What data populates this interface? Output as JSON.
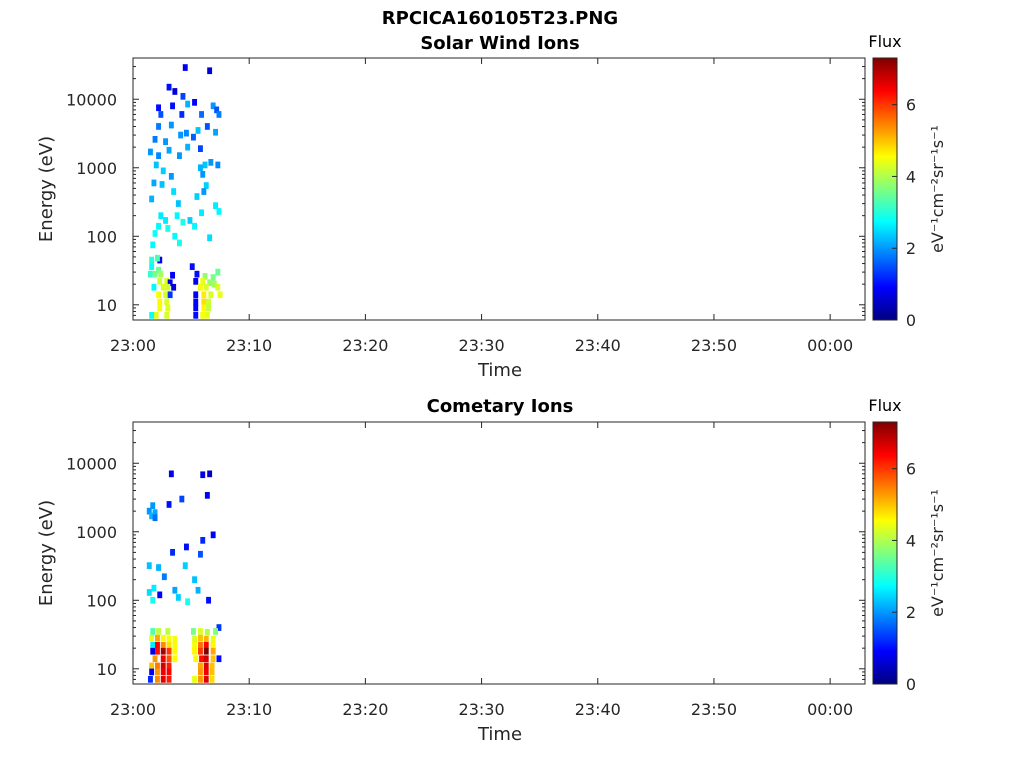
{
  "figure_title": "RPCICA160105T23.PNG",
  "colormap": [
    "#00007f",
    "#0000ff",
    "#007fff",
    "#00ffff",
    "#7fff7f",
    "#ffff00",
    "#ff7f00",
    "#ff0000",
    "#7f0000"
  ],
  "chart_data": [
    {
      "type": "heatmap",
      "title": "Solar Wind Ions",
      "xlabel": "Time",
      "ylabel": "Energy (eV)",
      "x_ticks": [
        "23:00",
        "23:10",
        "23:20",
        "23:30",
        "23:40",
        "23:50",
        "00:00"
      ],
      "x_range_min": [
        0,
        63
      ],
      "y_scale": "log",
      "y_range": [
        6,
        40000
      ],
      "y_ticks": [
        "10",
        "100",
        "1000",
        "10000"
      ],
      "colorbar": {
        "title": "Flux",
        "label": "eV⁻¹cm⁻²sr⁻¹s⁻¹",
        "range": [
          0,
          7.3
        ],
        "ticks": [
          "0",
          "2",
          "4",
          "6"
        ]
      },
      "cells": [
        [
          2.2,
          7500,
          1.0
        ],
        [
          3.1,
          15000,
          1.0
        ],
        [
          4.5,
          29000,
          0.8
        ],
        [
          6.6,
          26000,
          0.6
        ],
        [
          3.6,
          13000,
          0.6
        ],
        [
          4.3,
          11000,
          1.4
        ],
        [
          2.4,
          6000,
          1.5
        ],
        [
          3.4,
          8000,
          1.0
        ],
        [
          4.7,
          8500,
          2.2
        ],
        [
          5.3,
          9000,
          0.9
        ],
        [
          6.9,
          8000,
          2.0
        ],
        [
          7.2,
          7000,
          1.5
        ],
        [
          7.4,
          6000,
          1.8
        ],
        [
          4.2,
          6000,
          1.2
        ],
        [
          5.9,
          6000,
          1.7
        ],
        [
          2.2,
          4000,
          1.8
        ],
        [
          3.3,
          4200,
          2.0
        ],
        [
          4.6,
          3200,
          1.9
        ],
        [
          5.6,
          3500,
          2.3
        ],
        [
          6.4,
          4000,
          1.5
        ],
        [
          7.1,
          3300,
          2.1
        ],
        [
          4.1,
          3000,
          2.0
        ],
        [
          5.2,
          2800,
          1.6
        ],
        [
          1.9,
          2600,
          1.8
        ],
        [
          2.8,
          2400,
          2.0
        ],
        [
          4.7,
          2000,
          2.2
        ],
        [
          5.8,
          1900,
          1.4
        ],
        [
          3.1,
          1800,
          2.1
        ],
        [
          1.5,
          1700,
          2.0
        ],
        [
          2.2,
          1500,
          1.9
        ],
        [
          4.0,
          1500,
          2.0
        ],
        [
          6.2,
          1100,
          2.3
        ],
        [
          6.7,
          1200,
          2.0
        ],
        [
          7.3,
          1100,
          1.9
        ],
        [
          5.8,
          1000,
          2.2
        ],
        [
          2.0,
          1100,
          2.3
        ],
        [
          2.6,
          900,
          2.4
        ],
        [
          6.0,
          800,
          2.0
        ],
        [
          3.3,
          750,
          2.0
        ],
        [
          1.8,
          600,
          2.1
        ],
        [
          2.5,
          570,
          2.3
        ],
        [
          6.3,
          550,
          2.4
        ],
        [
          3.5,
          450,
          2.5
        ],
        [
          6.1,
          450,
          2.0
        ],
        [
          5.5,
          380,
          2.4
        ],
        [
          1.6,
          350,
          2.2
        ],
        [
          3.9,
          300,
          2.3
        ],
        [
          7.1,
          280,
          2.6
        ],
        [
          7.4,
          230,
          2.7
        ],
        [
          5.9,
          220,
          2.6
        ],
        [
          2.4,
          200,
          2.6
        ],
        [
          3.8,
          200,
          2.7
        ],
        [
          2.8,
          170,
          2.6
        ],
        [
          4.3,
          160,
          2.9
        ],
        [
          4.9,
          170,
          2.4
        ],
        [
          2.2,
          140,
          2.7
        ],
        [
          3.0,
          130,
          2.9
        ],
        [
          5.3,
          140,
          2.7
        ],
        [
          1.9,
          110,
          2.8
        ],
        [
          3.6,
          100,
          2.7
        ],
        [
          6.6,
          95,
          2.5
        ],
        [
          1.7,
          75,
          2.7
        ],
        [
          4.0,
          80,
          2.9
        ],
        [
          2.3,
          45,
          0.8
        ],
        [
          1.6,
          45,
          3.0
        ],
        [
          2.1,
          48,
          3.3
        ],
        [
          1.6,
          36,
          2.8
        ],
        [
          2.2,
          32,
          3.5
        ],
        [
          5.1,
          36,
          1.0
        ],
        [
          1.5,
          28,
          3.1
        ],
        [
          1.9,
          28,
          3.6
        ],
        [
          2.4,
          28,
          3.9
        ],
        [
          3.4,
          27,
          0.9
        ],
        [
          5.5,
          28,
          1.0
        ],
        [
          6.2,
          26,
          3.8
        ],
        [
          6.9,
          25,
          3.6
        ],
        [
          7.3,
          30,
          3.5
        ],
        [
          2.3,
          22,
          4.2
        ],
        [
          2.9,
          22,
          4.3
        ],
        [
          3.2,
          21,
          0.8
        ],
        [
          5.4,
          22,
          0.8
        ],
        [
          6.0,
          22,
          4.4
        ],
        [
          6.6,
          21,
          3.8
        ],
        [
          7.0,
          20,
          3.9
        ],
        [
          1.8,
          18,
          2.7
        ],
        [
          2.6,
          18,
          4.3
        ],
        [
          3.0,
          18,
          4.2
        ],
        [
          3.5,
          18,
          0.7
        ],
        [
          5.8,
          18,
          4.5
        ],
        [
          6.3,
          18,
          4.3
        ],
        [
          7.3,
          18,
          4.3
        ],
        [
          2.2,
          14,
          4.5
        ],
        [
          2.8,
          14,
          4.3
        ],
        [
          5.4,
          14,
          0.9
        ],
        [
          6.1,
          14,
          4.7
        ],
        [
          6.7,
          14,
          4.3
        ],
        [
          7.5,
          14,
          4.4
        ],
        [
          3.2,
          14,
          1.3
        ],
        [
          2.3,
          11,
          4.6
        ],
        [
          2.9,
          11,
          4.3
        ],
        [
          5.4,
          11,
          0.9
        ],
        [
          6.1,
          11,
          4.8
        ],
        [
          6.5,
          11,
          4.2
        ],
        [
          2.3,
          9,
          4.5
        ],
        [
          3.0,
          9,
          4.3
        ],
        [
          5.4,
          9,
          0.9
        ],
        [
          6.1,
          9,
          4.6
        ],
        [
          6.5,
          9,
          4.1
        ],
        [
          2.0,
          7,
          4.4
        ],
        [
          2.9,
          7,
          4.3
        ],
        [
          5.4,
          7,
          1.0
        ],
        [
          6.0,
          7,
          4.5
        ],
        [
          6.4,
          7,
          4.4
        ],
        [
          1.6,
          7,
          2.8
        ]
      ]
    },
    {
      "type": "heatmap",
      "title": "Cometary Ions",
      "xlabel": "Time",
      "ylabel": "Energy (eV)",
      "x_ticks": [
        "23:00",
        "23:10",
        "23:20",
        "23:30",
        "23:40",
        "23:50",
        "00:00"
      ],
      "x_range_min": [
        0,
        63
      ],
      "y_scale": "log",
      "y_range": [
        6,
        40000
      ],
      "y_ticks": [
        "10",
        "100",
        "1000",
        "10000"
      ],
      "colorbar": {
        "title": "Flux",
        "label": "eV⁻¹cm⁻²sr⁻¹s⁻¹",
        "range": [
          0,
          7.3
        ],
        "ticks": [
          "0",
          "2",
          "4",
          "6"
        ]
      },
      "cells": [
        [
          3.3,
          7000,
          0.8
        ],
        [
          6.0,
          6800,
          0.7
        ],
        [
          6.6,
          7000,
          0.5
        ],
        [
          6.4,
          3400,
          0.8
        ],
        [
          4.2,
          3000,
          1.4
        ],
        [
          3.1,
          2500,
          1.0
        ],
        [
          1.7,
          2400,
          2.0
        ],
        [
          1.4,
          2000,
          2.0
        ],
        [
          1.9,
          1900,
          2.1
        ],
        [
          1.6,
          1700,
          2.2
        ],
        [
          1.9,
          1600,
          1.7
        ],
        [
          6.9,
          900,
          0.9
        ],
        [
          6.0,
          750,
          1.2
        ],
        [
          4.6,
          600,
          1.0
        ],
        [
          3.4,
          500,
          1.2
        ],
        [
          5.8,
          470,
          1.5
        ],
        [
          1.4,
          320,
          2.3
        ],
        [
          2.2,
          300,
          2.2
        ],
        [
          4.5,
          320,
          2.4
        ],
        [
          2.7,
          220,
          1.8
        ],
        [
          5.3,
          200,
          2.3
        ],
        [
          1.8,
          150,
          2.6
        ],
        [
          1.4,
          130,
          2.5
        ],
        [
          3.6,
          140,
          2.1
        ],
        [
          5.6,
          140,
          2.2
        ],
        [
          2.3,
          120,
          0.9
        ],
        [
          3.9,
          110,
          2.4
        ],
        [
          6.5,
          100,
          1.0
        ],
        [
          4.7,
          95,
          2.9
        ],
        [
          1.7,
          100,
          2.9
        ],
        [
          7.4,
          40,
          1.3
        ],
        [
          1.7,
          35,
          3.3
        ],
        [
          2.2,
          35,
          4.1
        ],
        [
          3.0,
          35,
          4.1
        ],
        [
          5.2,
          35,
          3.6
        ],
        [
          5.8,
          35,
          4.3
        ],
        [
          6.4,
          34,
          4.0
        ],
        [
          7.1,
          35,
          3.7
        ],
        [
          1.6,
          28,
          4.4
        ],
        [
          2.1,
          28,
          5.2
        ],
        [
          2.6,
          28,
          4.6
        ],
        [
          3.1,
          27,
          4.5
        ],
        [
          3.6,
          27,
          4.5
        ],
        [
          5.3,
          27,
          4.3
        ],
        [
          5.8,
          28,
          5.0
        ],
        [
          6.3,
          27,
          5.1
        ],
        [
          6.9,
          27,
          4.4
        ],
        [
          1.7,
          22,
          2.6
        ],
        [
          2.1,
          22,
          6.4
        ],
        [
          2.6,
          22,
          5.4
        ],
        [
          3.1,
          22,
          4.8
        ],
        [
          3.6,
          22,
          4.5
        ],
        [
          5.3,
          22,
          4.5
        ],
        [
          5.8,
          22,
          5.6
        ],
        [
          6.3,
          22,
          6.4
        ],
        [
          6.9,
          22,
          4.6
        ],
        [
          1.7,
          18,
          0.7
        ],
        [
          2.1,
          18,
          6.3
        ],
        [
          2.6,
          18,
          7.0
        ],
        [
          3.1,
          18,
          6.0
        ],
        [
          3.6,
          18,
          4.6
        ],
        [
          5.3,
          18,
          4.6
        ],
        [
          5.8,
          18,
          6.0
        ],
        [
          6.3,
          18,
          7.3
        ],
        [
          6.9,
          18,
          5.2
        ],
        [
          1.9,
          14,
          5.3
        ],
        [
          2.6,
          14,
          6.5
        ],
        [
          3.1,
          14,
          5.8
        ],
        [
          3.6,
          14,
          4.6
        ],
        [
          5.4,
          14,
          4.6
        ],
        [
          5.9,
          14,
          6.3
        ],
        [
          6.3,
          14,
          6.7
        ],
        [
          6.9,
          14,
          5.0
        ],
        [
          7.4,
          14,
          1.0
        ],
        [
          2.1,
          11,
          5.5
        ],
        [
          2.6,
          11,
          6.7
        ],
        [
          3.1,
          11,
          6.2
        ],
        [
          5.8,
          11,
          5.2
        ],
        [
          6.3,
          11,
          6.6
        ],
        [
          6.8,
          11,
          5.0
        ],
        [
          1.6,
          11,
          5.0
        ],
        [
          2.1,
          9,
          5.3
        ],
        [
          2.6,
          9,
          6.5
        ],
        [
          3.1,
          9,
          6.4
        ],
        [
          5.8,
          9,
          5.3
        ],
        [
          6.3,
          9,
          6.5
        ],
        [
          6.8,
          9,
          5.0
        ],
        [
          1.6,
          9,
          0.9
        ],
        [
          2.1,
          7,
          5.4
        ],
        [
          2.6,
          7,
          6.6
        ],
        [
          3.1,
          7,
          6.2
        ],
        [
          5.8,
          7,
          5.3
        ],
        [
          6.3,
          7,
          6.6
        ],
        [
          6.8,
          7,
          4.8
        ],
        [
          5.3,
          7,
          4.4
        ],
        [
          1.5,
          7,
          1.2
        ]
      ]
    }
  ]
}
